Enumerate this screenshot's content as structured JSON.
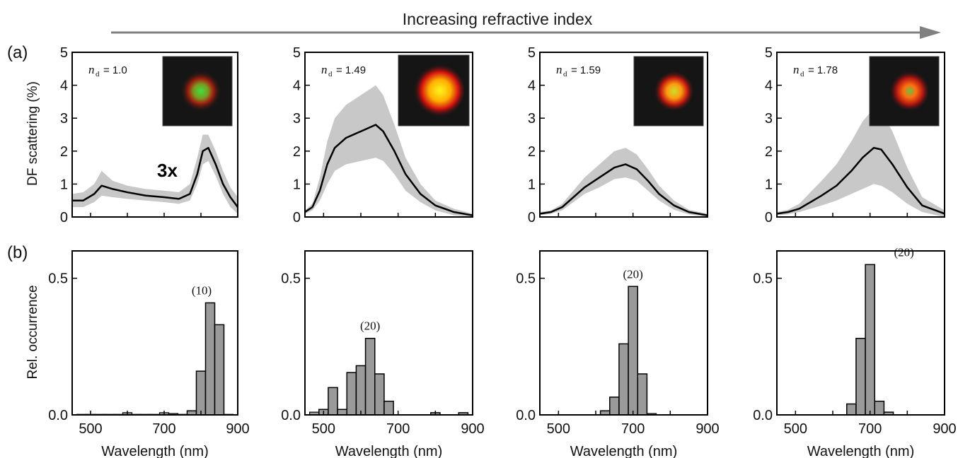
{
  "header": {
    "text": "Increasing refractive index"
  },
  "labels": {
    "panel_a": "(a)",
    "panel_b": "(b)",
    "multiplier": "3x"
  },
  "colors": {
    "band": "#c8c8c8",
    "line": "#000000",
    "bar": "#9a9a9a",
    "arrow": "#808080"
  },
  "chart_data": [
    {
      "panel": "a",
      "index": 0,
      "type": "area",
      "ylabel": "DF scattering (%)",
      "xlim": [
        450,
        900
      ],
      "ylim": [
        0,
        5
      ],
      "y_ticks": [
        "0",
        "1",
        "2",
        "3",
        "4",
        "5"
      ],
      "annotation_label": "n",
      "annotation_subscript": "d",
      "annotation_value": "= 1.0",
      "mean": {
        "x": [
          450,
          480,
          510,
          530,
          560,
          600,
          650,
          700,
          740,
          770,
          790,
          805,
          820,
          840,
          860,
          880,
          900
        ],
        "y": [
          0.5,
          0.5,
          0.7,
          0.95,
          0.85,
          0.75,
          0.65,
          0.6,
          0.55,
          0.7,
          1.3,
          2.0,
          2.1,
          1.6,
          1.0,
          0.6,
          0.3
        ]
      },
      "band_upper": [
        0.7,
        0.75,
        1.0,
        1.4,
        1.1,
        0.95,
        0.85,
        0.8,
        0.75,
        1.0,
        1.8,
        2.5,
        2.5,
        2.0,
        1.4,
        0.9,
        0.6
      ],
      "band_lower": [
        0.3,
        0.3,
        0.45,
        0.65,
        0.6,
        0.55,
        0.5,
        0.45,
        0.4,
        0.5,
        1.0,
        1.6,
        1.7,
        1.25,
        0.7,
        0.3,
        0.1
      ]
    },
    {
      "panel": "a",
      "index": 1,
      "type": "area",
      "ylabel": "",
      "xlim": [
        450,
        900
      ],
      "ylim": [
        0,
        5
      ],
      "y_ticks": [
        "0",
        "1",
        "2",
        "3",
        "4",
        "5"
      ],
      "annotation_label": "n",
      "annotation_subscript": "d",
      "annotation_value": "= 1.49",
      "mean": {
        "x": [
          450,
          470,
          490,
          510,
          530,
          560,
          600,
          640,
          660,
          690,
          720,
          760,
          800,
          850,
          900
        ],
        "y": [
          0.15,
          0.3,
          0.8,
          1.6,
          2.1,
          2.4,
          2.6,
          2.8,
          2.6,
          2.0,
          1.3,
          0.7,
          0.35,
          0.15,
          0.05
        ]
      },
      "band_upper": [
        0.2,
        0.4,
        1.2,
        2.3,
        3.0,
        3.4,
        3.7,
        4.0,
        3.7,
        2.8,
        1.8,
        1.0,
        0.5,
        0.25,
        0.1
      ],
      "band_lower": [
        0.1,
        0.2,
        0.5,
        1.0,
        1.4,
        1.6,
        1.7,
        1.8,
        1.7,
        1.3,
        0.8,
        0.45,
        0.2,
        0.05,
        0.0
      ]
    },
    {
      "panel": "a",
      "index": 2,
      "type": "area",
      "ylabel": "",
      "xlim": [
        450,
        900
      ],
      "ylim": [
        0,
        5
      ],
      "y_ticks": [
        "0",
        "1",
        "2",
        "3",
        "4",
        "5"
      ],
      "annotation_label": "n",
      "annotation_subscript": "d",
      "annotation_value": "= 1.59",
      "mean": {
        "x": [
          450,
          480,
          510,
          540,
          570,
          610,
          650,
          680,
          710,
          740,
          770,
          810,
          850,
          900
        ],
        "y": [
          0.1,
          0.15,
          0.3,
          0.6,
          0.9,
          1.2,
          1.5,
          1.6,
          1.45,
          1.1,
          0.7,
          0.35,
          0.15,
          0.05
        ]
      },
      "band_upper": [
        0.15,
        0.2,
        0.4,
        0.8,
        1.2,
        1.6,
        2.0,
        2.1,
        1.9,
        1.45,
        0.95,
        0.5,
        0.22,
        0.1
      ],
      "band_lower": [
        0.05,
        0.1,
        0.2,
        0.45,
        0.7,
        0.9,
        1.15,
        1.2,
        1.1,
        0.8,
        0.5,
        0.22,
        0.08,
        0.0
      ]
    },
    {
      "panel": "a",
      "index": 3,
      "type": "area",
      "ylabel": "",
      "xlim": [
        450,
        900
      ],
      "ylim": [
        0,
        5
      ],
      "y_ticks": [
        "0",
        "1",
        "2",
        "3",
        "4",
        "5"
      ],
      "annotation_label": "n",
      "annotation_subscript": "d",
      "annotation_value": "= 1.78",
      "mean": {
        "x": [
          450,
          480,
          510,
          540,
          570,
          610,
          650,
          680,
          710,
          730,
          760,
          800,
          840,
          900
        ],
        "y": [
          0.1,
          0.15,
          0.25,
          0.45,
          0.65,
          0.95,
          1.4,
          1.8,
          2.1,
          2.05,
          1.6,
          0.9,
          0.35,
          0.1
        ]
      },
      "band_upper": [
        0.15,
        0.22,
        0.4,
        0.75,
        1.1,
        1.6,
        2.3,
        2.9,
        3.3,
        3.2,
        2.6,
        1.5,
        0.6,
        0.2
      ],
      "band_lower": [
        0.05,
        0.08,
        0.15,
        0.25,
        0.35,
        0.5,
        0.7,
        0.85,
        1.0,
        0.95,
        0.75,
        0.4,
        0.15,
        0.0
      ]
    },
    {
      "panel": "b",
      "index": 0,
      "type": "bar",
      "ylabel": "Rel. occurrence",
      "xlabel": "Wavelength (nm)",
      "xlim": [
        450,
        900
      ],
      "ylim": [
        0,
        0.6
      ],
      "x_ticks": [
        "500",
        "700",
        "900"
      ],
      "y_ticks": [
        "0.0",
        "0.5"
      ],
      "bin_width": 25,
      "count_label": "(10)",
      "bins": [
        775,
        800,
        825,
        850
      ],
      "values": [
        0.015,
        0.16,
        0.41,
        0.33
      ],
      "baseline_bins": [
        475,
        500,
        525,
        550,
        575,
        600,
        625,
        650,
        675,
        700,
        725,
        750,
        875
      ],
      "baseline_values": [
        0.002,
        0.002,
        0.002,
        0.002,
        0.002,
        0.008,
        0.002,
        0.002,
        0.002,
        0.008,
        0.005,
        0.002,
        0.002
      ]
    },
    {
      "panel": "b",
      "index": 1,
      "type": "bar",
      "ylabel": "",
      "xlabel": "Wavelength (nm)",
      "xlim": [
        450,
        900
      ],
      "ylim": [
        0,
        0.6
      ],
      "x_ticks": [
        "500",
        "700",
        "900"
      ],
      "y_ticks": [
        "0.0",
        "0.5"
      ],
      "bin_width": 25,
      "count_label": "(20)",
      "bins": [
        500,
        525,
        550,
        575,
        600,
        625,
        650,
        675,
        700,
        725,
        750,
        775,
        800,
        825,
        850,
        875,
        900
      ],
      "values": [
        0.02,
        0.1,
        0.02,
        0.155,
        0.18,
        0.28,
        0.15,
        0.05,
        0.0,
        0.0,
        0.0,
        0.0,
        0.008,
        0.0,
        0.0,
        0.008,
        0.0
      ],
      "baseline_bins": [
        475
      ],
      "baseline_values": [
        0.01
      ]
    },
    {
      "panel": "b",
      "index": 2,
      "type": "bar",
      "ylabel": "",
      "xlabel": "Wavelength (nm)",
      "xlim": [
        450,
        900
      ],
      "ylim": [
        0,
        0.6
      ],
      "x_ticks": [
        "500",
        "700",
        "900"
      ],
      "y_ticks": [
        "0.0",
        "0.5"
      ],
      "bin_width": 25,
      "count_label": "(20)",
      "bins": [
        625,
        650,
        675,
        700,
        725
      ],
      "values": [
        0.015,
        0.065,
        0.26,
        0.47,
        0.15
      ],
      "baseline_bins": [
        750
      ],
      "baseline_values": [
        0.005
      ]
    },
    {
      "panel": "b",
      "index": 3,
      "type": "bar",
      "ylabel": "",
      "xlabel": "Wavelength (nm)",
      "xlim": [
        450,
        900
      ],
      "ylim": [
        0,
        0.6
      ],
      "x_ticks": [
        "500",
        "700",
        "900"
      ],
      "y_ticks": [
        "0.0",
        "0.5"
      ],
      "bin_width": 25,
      "count_label": "(20)",
      "bins": [
        650,
        675,
        700,
        725,
        750
      ],
      "values": [
        0.04,
        0.28,
        0.55,
        0.05,
        0.01
      ],
      "baseline_bins": [],
      "baseline_values": []
    }
  ]
}
